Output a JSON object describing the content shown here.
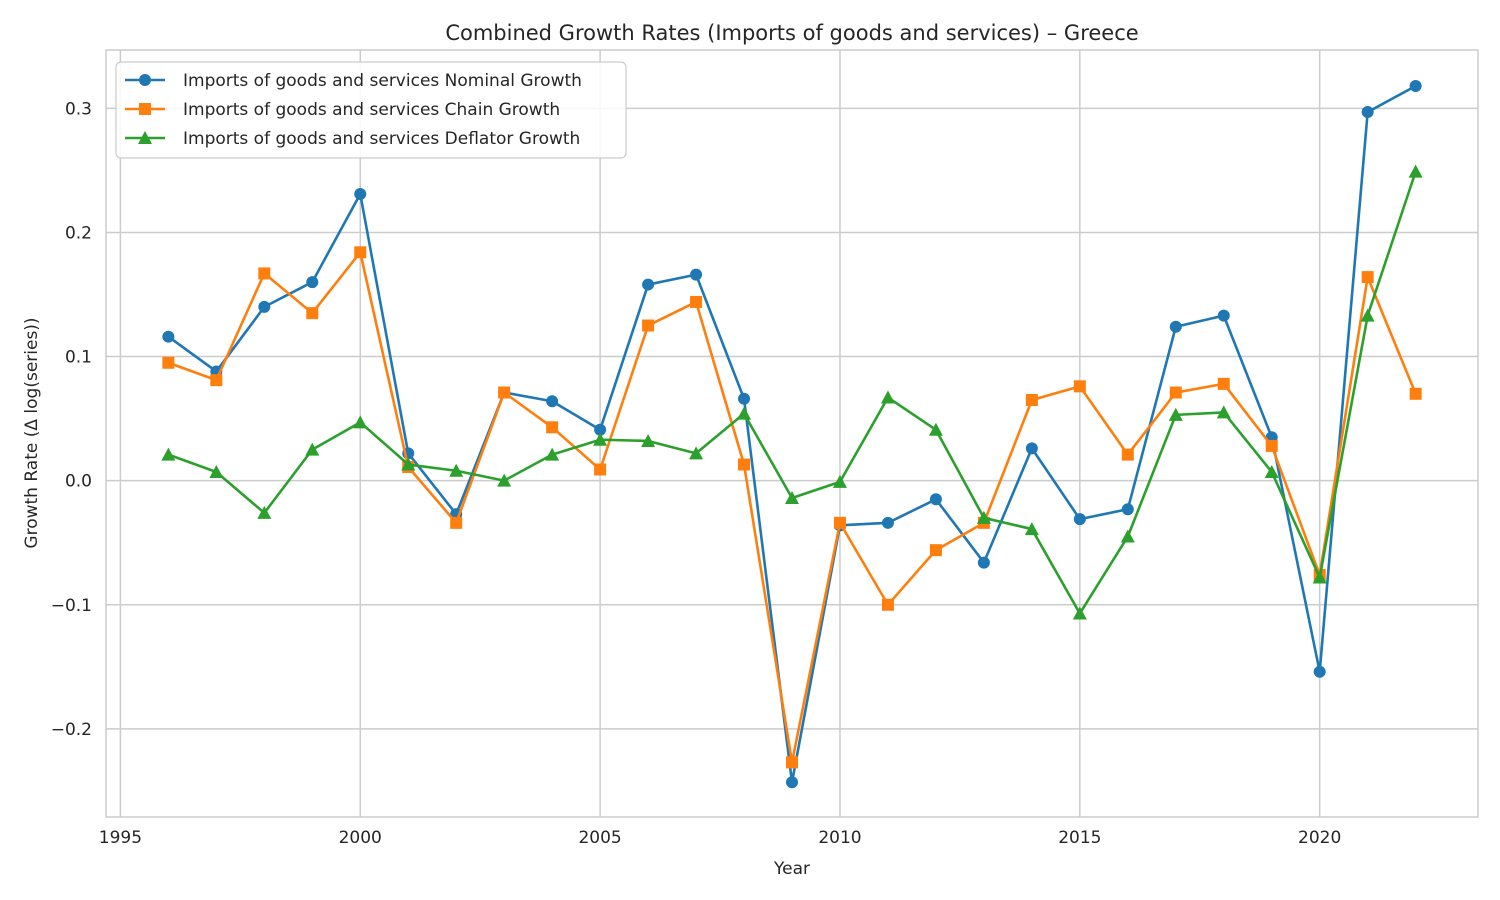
{
  "chart_data": {
    "type": "line",
    "title": "Combined Growth Rates (Imports of goods and services) – Greece",
    "xlabel": "Year",
    "ylabel": "Growth Rate (Δ log(series))",
    "xlim": [
      1994.7,
      2023.3
    ],
    "ylim": [
      -0.271,
      0.347
    ],
    "x_ticks": [
      1995,
      2000,
      2005,
      2010,
      2015,
      2020
    ],
    "x_tick_labels": [
      "1995",
      "2000",
      "2005",
      "2010",
      "2015",
      "2020"
    ],
    "y_ticks": [
      -0.2,
      -0.1,
      0.0,
      0.1,
      0.2,
      0.3
    ],
    "y_tick_labels": [
      "−0.2",
      "−0.1",
      "0.0",
      "0.1",
      "0.2",
      "0.3"
    ],
    "grid": true,
    "legend_position": "top-left",
    "x": [
      1996,
      1997,
      1998,
      1999,
      2000,
      2001,
      2002,
      2003,
      2004,
      2005,
      2006,
      2007,
      2008,
      2009,
      2010,
      2011,
      2012,
      2013,
      2014,
      2015,
      2016,
      2017,
      2018,
      2019,
      2020,
      2021,
      2022
    ],
    "series": [
      {
        "name": "Imports of goods and services Nominal Growth",
        "color": "#1f77b4",
        "marker": "circle",
        "values": [
          0.116,
          0.088,
          0.14,
          0.16,
          0.231,
          0.022,
          -0.027,
          0.071,
          0.064,
          0.041,
          0.158,
          0.166,
          0.066,
          -0.243,
          -0.036,
          -0.034,
          -0.015,
          -0.066,
          0.026,
          -0.031,
          -0.023,
          0.124,
          0.133,
          0.035,
          -0.154,
          0.297,
          0.318
        ]
      },
      {
        "name": "Imports of goods and services Chain Growth",
        "color": "#ff7f0e",
        "marker": "square",
        "values": [
          0.095,
          0.081,
          0.167,
          0.135,
          0.184,
          0.011,
          -0.034,
          0.071,
          0.043,
          0.009,
          0.125,
          0.144,
          0.013,
          -0.227,
          -0.034,
          -0.1,
          -0.056,
          -0.034,
          0.065,
          0.076,
          0.021,
          0.071,
          0.078,
          0.028,
          -0.076,
          0.164,
          0.07
        ]
      },
      {
        "name": "Imports of goods and services Deflator Growth",
        "color": "#2ca02c",
        "marker": "triangle",
        "values": [
          0.021,
          0.007,
          -0.026,
          0.025,
          0.047,
          0.013,
          0.008,
          0.0,
          0.021,
          0.033,
          0.032,
          0.022,
          0.054,
          -0.014,
          -0.001,
          0.067,
          0.041,
          -0.03,
          -0.039,
          -0.107,
          -0.045,
          0.053,
          0.055,
          0.007,
          -0.078,
          0.133,
          0.249
        ]
      }
    ]
  }
}
